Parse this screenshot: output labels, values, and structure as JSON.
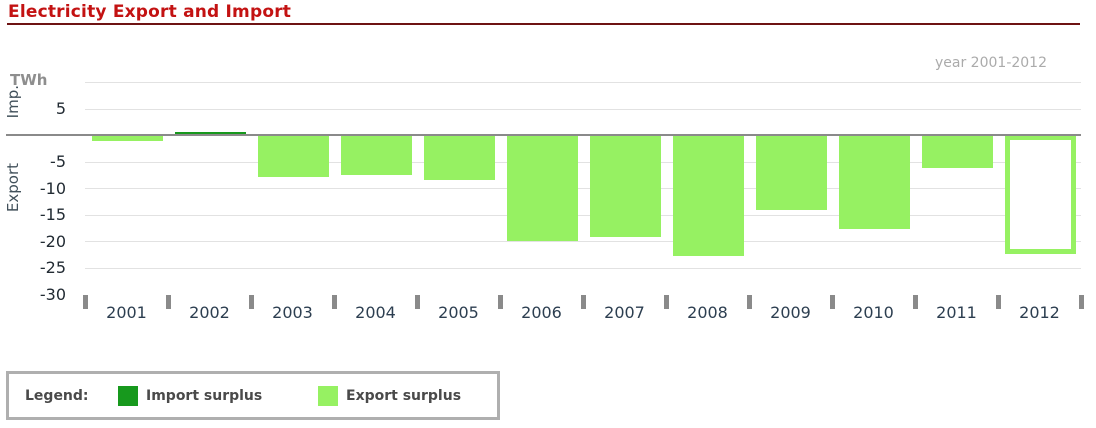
{
  "header": {
    "title": "Electricity Export and Import",
    "subtitle": "year 2001-2012"
  },
  "axis": {
    "unit_label": "TWh",
    "positive_direction_label": "Imp.",
    "negative_direction_label": "Export",
    "y_tick_labels": [
      5,
      -5,
      -10,
      -15,
      -20,
      -25,
      -30
    ]
  },
  "chart_data": {
    "type": "bar",
    "title": "Electricity Export and Import",
    "unit": "TWh",
    "categories": [
      "2001",
      "2002",
      "2003",
      "2004",
      "2005",
      "2006",
      "2007",
      "2008",
      "2009",
      "2010",
      "2011",
      "2012"
    ],
    "values": [
      -1.1,
      0.5,
      -8,
      -7.5,
      -8.5,
      -20,
      -19.2,
      -22.8,
      -14.2,
      -17.7,
      -6.3,
      -22.5
    ],
    "ylim": [
      -30,
      10
    ],
    "gridline_values": [
      10,
      5,
      -5,
      -10,
      -15,
      -20,
      -25
    ],
    "positive_means": "Import surplus",
    "negative_means": "Export surplus",
    "outline_bar_category": "2012",
    "colors": {
      "import_surplus": "#17991D",
      "export_surplus": "#96F162"
    },
    "legend_position": "bottom-left",
    "grid": true
  },
  "legend": {
    "label": "Legend:",
    "items": [
      {
        "label": "Import surplus",
        "color": "#17991D"
      },
      {
        "label": "Export surplus",
        "color": "#96F162"
      }
    ]
  }
}
